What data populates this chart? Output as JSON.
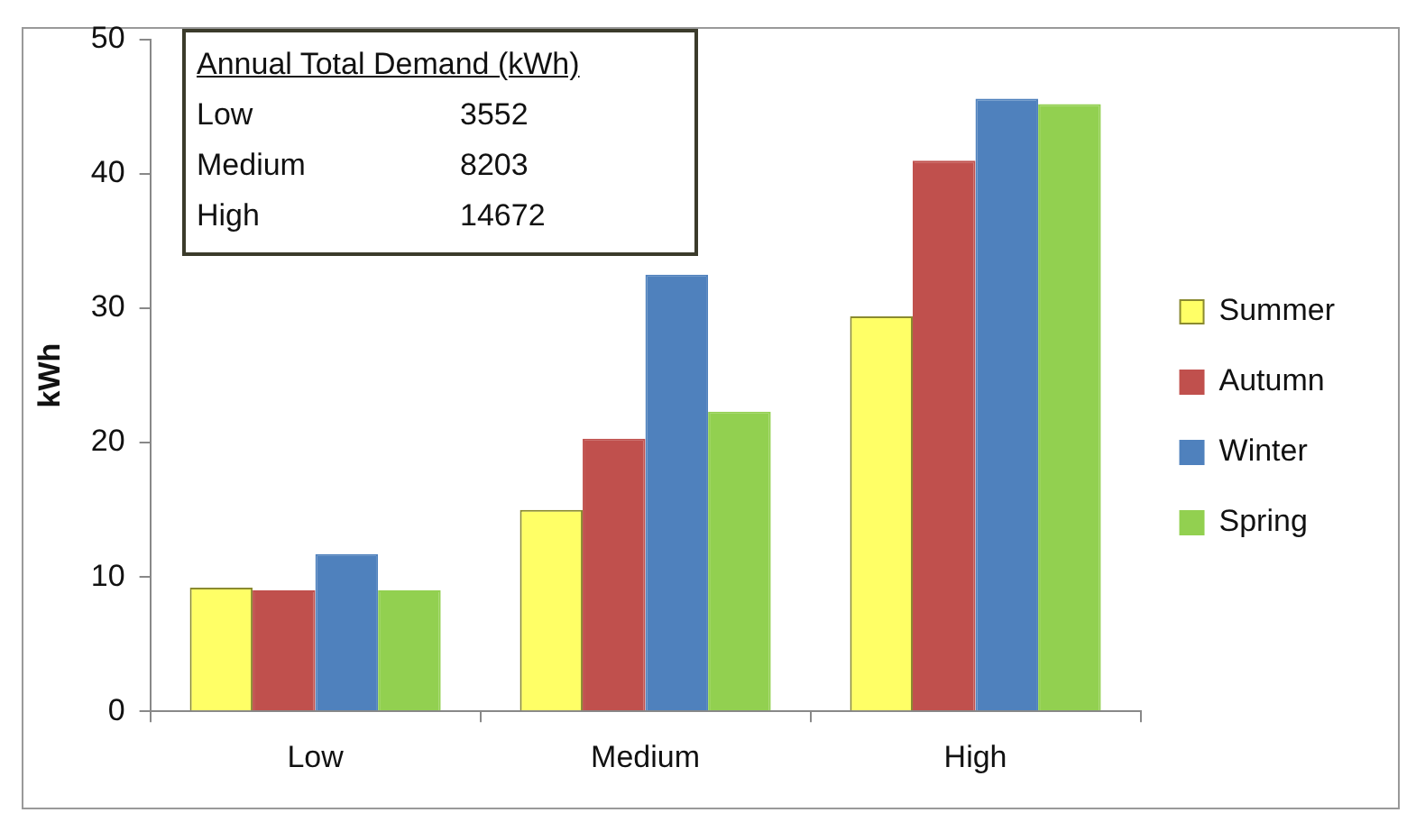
{
  "chart_data": {
    "type": "bar",
    "ylabel": "kWh",
    "categories": [
      "Low",
      "Medium",
      "High"
    ],
    "series": [
      {
        "name": "Summer",
        "color": "#ffff66",
        "values": [
          9.2,
          15.0,
          29.4
        ]
      },
      {
        "name": "Autumn",
        "color": "#c0504d",
        "values": [
          9.0,
          20.3,
          41.0
        ]
      },
      {
        "name": "Winter",
        "color": "#4f81bd",
        "values": [
          11.7,
          32.5,
          45.6
        ]
      },
      {
        "name": "Spring",
        "color": "#92d050",
        "values": [
          9.0,
          22.3,
          45.2
        ]
      }
    ],
    "ylim": [
      0,
      50
    ],
    "yticks": [
      0,
      10,
      20,
      30,
      40,
      50
    ],
    "grid": false,
    "legend": "right",
    "annotations": [
      "Annual Total Demand (kWh)",
      "Low",
      "3552",
      "Medium",
      "8203",
      "High",
      "14672"
    ]
  }
}
